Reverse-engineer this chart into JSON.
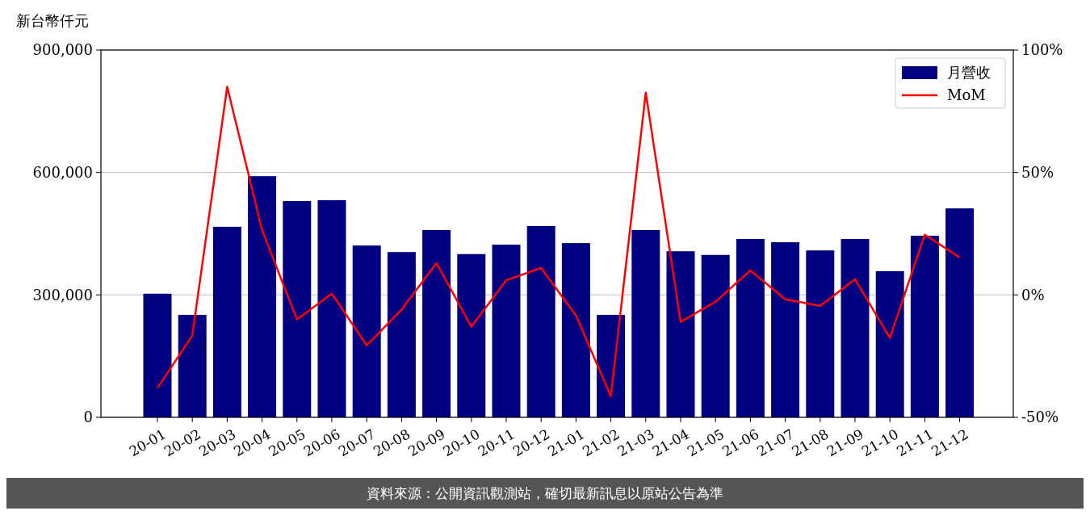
{
  "chart_data": {
    "type": "bar",
    "ylabel": "新台幣仟元",
    "categories": [
      "20-01",
      "20-02",
      "20-03",
      "20-04",
      "20-05",
      "20-06",
      "20-07",
      "20-08",
      "20-09",
      "20-10",
      "20-11",
      "20-12",
      "21-01",
      "21-02",
      "21-03",
      "21-04",
      "21-05",
      "21-06",
      "21-07",
      "21-08",
      "21-09",
      "21-10",
      "21-11",
      "21-12"
    ],
    "series": [
      {
        "name": "月營收",
        "color": "#000080",
        "values": [
          303000,
          251000,
          467000,
          591000,
          530000,
          532000,
          421000,
          405000,
          459000,
          400000,
          423000,
          469000,
          427000,
          251000,
          459000,
          407000,
          398000,
          437000,
          429000,
          409000,
          437000,
          358000,
          445000,
          512000
        ]
      },
      {
        "name": "MoM",
        "type": "line",
        "axis": "y2",
        "color": "#ff0000",
        "values": [
          -38,
          -16.6,
          85,
          26.5,
          -10,
          0.5,
          -20.6,
          -6,
          13,
          -13,
          6,
          11,
          -8.4,
          -41.4,
          82.6,
          -11,
          -2.8,
          10,
          -1.8,
          -4.5,
          6.4,
          -17.6,
          24.6,
          15.3
        ]
      }
    ],
    "ylim": [
      0,
      900000
    ],
    "yticks": [
      {
        "value": 0,
        "label": "0"
      },
      {
        "value": 300000,
        "label": "300,000"
      },
      {
        "value": 600000,
        "label": "600,000"
      },
      {
        "value": 900000,
        "label": "900,000"
      }
    ],
    "y2lim": [
      -50,
      100
    ],
    "y2ticks": [
      {
        "value": -50,
        "label": "-50%"
      },
      {
        "value": 0,
        "label": "0%"
      },
      {
        "value": 50,
        "label": "50%"
      },
      {
        "value": 100,
        "label": "100%"
      }
    ],
    "grid": "y",
    "legend": "top right",
    "annotations": [
      "資料來源：公開資訊觀測站，確切最新訊息以原站公告為準"
    ]
  }
}
